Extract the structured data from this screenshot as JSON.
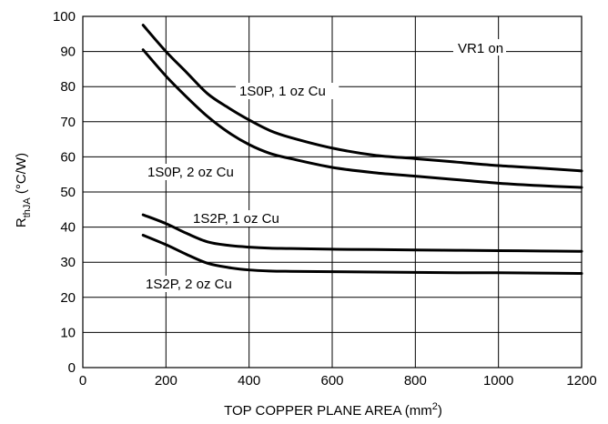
{
  "chart_data": {
    "type": "line",
    "title": "",
    "xlabel": "TOP COPPER PLANE AREA (mm",
    "xlabel_sup": "2",
    "xlabel_end": ")",
    "ylabel_main": "R",
    "ylabel_sub": "thJA",
    "ylabel_rest": " (°C/W)",
    "xlim": [
      0,
      1200
    ],
    "ylim": [
      0,
      100
    ],
    "x_ticks": [
      "0",
      "200",
      "400",
      "600",
      "800",
      "1000",
      "1200"
    ],
    "y_ticks": [
      "0",
      "10",
      "20",
      "30",
      "40",
      "50",
      "60",
      "70",
      "80",
      "90",
      "100"
    ],
    "grid": true,
    "annotation": "VR1 on",
    "series": [
      {
        "name": "1S0P, 1 oz Cu",
        "x": [
          145,
          200,
          250,
          300,
          350,
          400,
          450,
          500,
          600,
          700,
          800,
          900,
          1000,
          1100,
          1200
        ],
        "y": [
          97.5,
          90,
          84,
          78,
          74,
          70.5,
          67.5,
          65.5,
          62.5,
          60.5,
          59.5,
          58.5,
          57.5,
          56.8,
          56
        ]
      },
      {
        "name": "1S0P, 2 oz Cu",
        "x": [
          145,
          200,
          250,
          300,
          350,
          400,
          450,
          500,
          600,
          700,
          800,
          900,
          1000,
          1100,
          1200
        ],
        "y": [
          90.5,
          83,
          77,
          71.5,
          67,
          63.5,
          61,
          59.5,
          57,
          55.5,
          54.5,
          53.5,
          52.5,
          51.8,
          51.3
        ]
      },
      {
        "name": "1S2P, 1 oz Cu",
        "x": [
          145,
          200,
          250,
          300,
          350,
          400,
          450,
          500,
          600,
          700,
          800,
          900,
          1000,
          1100,
          1200
        ],
        "y": [
          43.5,
          41,
          38.2,
          35.8,
          34.8,
          34.3,
          34,
          33.9,
          33.7,
          33.6,
          33.5,
          33.4,
          33.3,
          33.2,
          33.1
        ]
      },
      {
        "name": "1S2P, 2 oz Cu",
        "x": [
          145,
          200,
          250,
          300,
          350,
          400,
          450,
          500,
          600,
          700,
          800,
          900,
          1000,
          1100,
          1200
        ],
        "y": [
          37.7,
          35,
          32.2,
          29.7,
          28.5,
          27.8,
          27.5,
          27.4,
          27.3,
          27.2,
          27.1,
          27,
          27,
          26.9,
          26.8
        ]
      }
    ]
  }
}
